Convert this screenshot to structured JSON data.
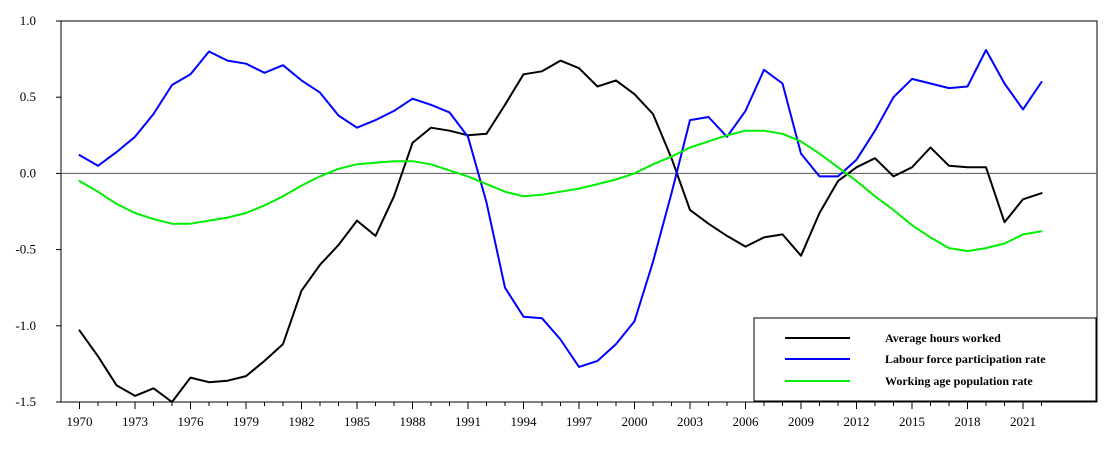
{
  "chart_data": {
    "type": "line",
    "title": "",
    "xlabel": "",
    "ylabel": "",
    "x": [
      1970,
      1971,
      1972,
      1973,
      1974,
      1975,
      1976,
      1977,
      1978,
      1979,
      1980,
      1981,
      1982,
      1983,
      1984,
      1985,
      1986,
      1987,
      1988,
      1989,
      1990,
      1991,
      1992,
      1993,
      1994,
      1995,
      1996,
      1997,
      1998,
      1999,
      2000,
      2001,
      2002,
      2003,
      2004,
      2005,
      2006,
      2007,
      2008,
      2009,
      2010,
      2011,
      2012,
      2013,
      2014,
      2015,
      2016,
      2017,
      2018,
      2019,
      2020,
      2021,
      2022
    ],
    "xticks": [
      1970,
      1973,
      1976,
      1979,
      1982,
      1985,
      1988,
      1991,
      1994,
      1997,
      2000,
      2003,
      2006,
      2009,
      2012,
      2015,
      2018,
      2021
    ],
    "xlim": [
      1969,
      2025
    ],
    "ylim": [
      -1.5,
      1.0
    ],
    "yticks": [
      -1.5,
      -1.0,
      -0.5,
      0.0,
      0.5,
      1.0
    ],
    "ytick_labels": [
      "-1.5",
      "-1.0",
      "-0.5",
      "0.0",
      "0.5",
      "1.0"
    ],
    "zero_line": true,
    "legend_position": "bottom-right",
    "series": [
      {
        "name": "Average hours worked",
        "color": "#000000",
        "values": [
          -1.03,
          -1.2,
          -1.39,
          -1.46,
          -1.41,
          -1.5,
          -1.34,
          -1.37,
          -1.36,
          -1.33,
          -1.23,
          -1.12,
          -0.77,
          -0.6,
          -0.47,
          -0.31,
          -0.41,
          -0.15,
          0.2,
          0.3,
          0.28,
          0.25,
          0.26,
          0.45,
          0.65,
          0.67,
          0.74,
          0.69,
          0.57,
          0.61,
          0.52,
          0.39,
          0.1,
          -0.24,
          -0.33,
          -0.41,
          -0.48,
          -0.42,
          -0.4,
          -0.54,
          -0.26,
          -0.05,
          0.04,
          0.1,
          -0.02,
          0.04,
          0.17,
          0.05,
          0.04,
          0.04,
          -0.32,
          -0.17,
          -0.13
        ]
      },
      {
        "name": "Labour force participation rate",
        "color": "#0000ff",
        "values": [
          0.12,
          0.05,
          0.14,
          0.24,
          0.39,
          0.58,
          0.65,
          0.8,
          0.74,
          0.72,
          0.66,
          0.71,
          0.61,
          0.53,
          0.38,
          0.3,
          0.35,
          0.41,
          0.49,
          0.45,
          0.4,
          0.24,
          -0.19,
          -0.75,
          -0.94,
          -0.95,
          -1.09,
          -1.27,
          -1.23,
          -1.12,
          -0.97,
          -0.58,
          -0.13,
          0.35,
          0.37,
          0.24,
          0.41,
          0.68,
          0.59,
          0.13,
          -0.02,
          -0.02,
          0.09,
          0.28,
          0.5,
          0.62,
          0.59,
          0.56,
          0.57,
          0.81,
          0.59,
          0.42,
          0.6
        ]
      },
      {
        "name": "Working age population rate",
        "color": "#00ee00",
        "values": [
          -0.05,
          -0.12,
          -0.2,
          -0.26,
          -0.3,
          -0.33,
          -0.33,
          -0.31,
          -0.29,
          -0.26,
          -0.21,
          -0.15,
          -0.08,
          -0.02,
          0.03,
          0.06,
          0.07,
          0.08,
          0.08,
          0.06,
          0.02,
          -0.02,
          -0.07,
          -0.12,
          -0.15,
          -0.14,
          -0.12,
          -0.1,
          -0.07,
          -0.04,
          0.0,
          0.06,
          0.11,
          0.17,
          0.21,
          0.25,
          0.28,
          0.28,
          0.26,
          0.21,
          0.13,
          0.04,
          -0.05,
          -0.15,
          -0.24,
          -0.34,
          -0.42,
          -0.49,
          -0.51,
          -0.49,
          -0.46,
          -0.4,
          -0.38
        ]
      }
    ]
  }
}
